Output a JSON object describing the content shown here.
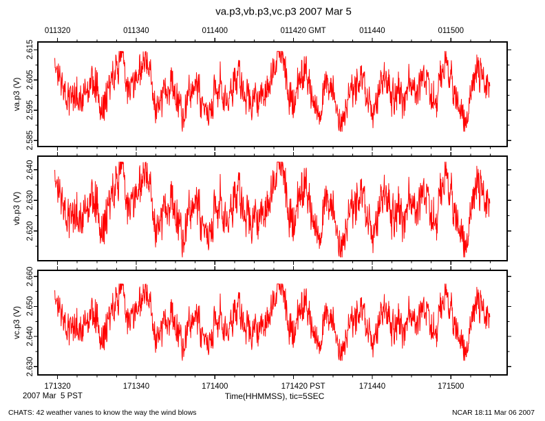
{
  "chart_data": {
    "type": "line",
    "title": "va.p3,vb.p3,vc.p3 2007 Mar 5",
    "line_color": "#ff0000",
    "frame_color": "#000000",
    "grid": false,
    "x_axis": {
      "xlabel": "Time(HHMMSS), tic=5SEC",
      "date_left": "2007 Mar  5 PST",
      "top_labels": [
        "011320",
        "011340",
        "011400",
        "011420 GMT",
        "011440",
        "011500"
      ],
      "bottom_labels": [
        "171320",
        "171340",
        "171400",
        "171420 PST",
        "171440",
        "171500"
      ],
      "major_secs": [
        5,
        25,
        45,
        65,
        85,
        105
      ],
      "minor_step_sec": 5,
      "axis_range_sec": [
        0,
        119.3
      ],
      "data_range_sec": [
        4.3,
        114.9
      ]
    },
    "panels": [
      {
        "ylabel": "va.p3 (V)",
        "ytick_labels": [
          "2.585",
          "2.595",
          "2.605",
          "2.615"
        ],
        "ytick_values": [
          2.585,
          2.595,
          2.605,
          2.615
        ],
        "yminor_values": [
          2.59,
          2.6,
          2.61
        ],
        "ylim": [
          2.583,
          2.6176
        ],
        "series": {
          "name": "va.p3",
          "min": 2.588,
          "max": 2.6145,
          "mean": 2.601
        }
      },
      {
        "ylabel": "vb.p3 (V)",
        "ytick_labels": [
          "2.620",
          "2.630",
          "2.640"
        ],
        "ytick_values": [
          2.62,
          2.63,
          2.64
        ],
        "yminor_values": [
          2.615,
          2.625,
          2.635
        ],
        "ylim": [
          2.6103,
          2.6444
        ],
        "series": {
          "name": "vb.p3",
          "min": 2.6115,
          "max": 2.6425,
          "mean": 2.63
        }
      },
      {
        "ylabel": "vc.p3 (V)",
        "ytick_labels": [
          "2.630",
          "2.640",
          "2.650",
          "2.660"
        ],
        "ytick_values": [
          2.63,
          2.64,
          2.65,
          2.66
        ],
        "yminor_values": [
          2.635,
          2.645,
          2.655
        ],
        "ylim": [
          2.6272,
          2.662
        ],
        "series": {
          "name": "vc.p3",
          "min": 2.632,
          "max": 2.6575,
          "mean": 2.643
        }
      }
    ],
    "waveform_profile": [
      0.88,
      0.52,
      0.38,
      0.55,
      0.45,
      0.4,
      0.62,
      0.48,
      0.35,
      0.58,
      0.78,
      0.95,
      0.55,
      0.42,
      0.7,
      0.92,
      0.48,
      0.3,
      0.5,
      0.64,
      0.36,
      0.22,
      0.46,
      0.68,
      0.4,
      0.18,
      0.42,
      0.6,
      0.34,
      0.52,
      0.72,
      0.44,
      0.28,
      0.54,
      0.38,
      0.62,
      0.88,
      0.97,
      0.52,
      0.34,
      0.6,
      0.82,
      0.42,
      0.24,
      0.44,
      0.64,
      0.36,
      0.14,
      0.38,
      0.56,
      0.74,
      0.46,
      0.28,
      0.52,
      0.7,
      0.4,
      0.56,
      0.34,
      0.62,
      0.46,
      0.68,
      0.5,
      0.36,
      0.6,
      0.95,
      0.52,
      0.28,
      0.08,
      0.48,
      0.88,
      0.58,
      0.5
    ],
    "noise_seed": 987654321
  },
  "footer": {
    "left": "CHATS: 42 weather vanes to know the way the wind blows",
    "right": "NCAR 18:11 Mar 06 2007"
  }
}
